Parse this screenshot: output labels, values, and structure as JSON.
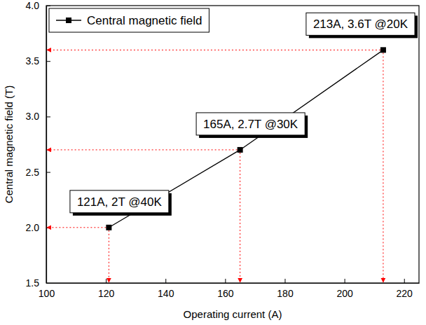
{
  "chart_data": {
    "type": "line",
    "x_label": "Operating current (A)",
    "y_label": "Central magnetic field (T)",
    "xlim": [
      100,
      225
    ],
    "xticks": [
      100,
      120,
      140,
      160,
      180,
      200,
      220
    ],
    "ylim": [
      1.5,
      4.0
    ],
    "yticks": [
      1.5,
      {
        "value": 2,
        "label": "2.0"
      },
      2.5,
      {
        "value": 3,
        "label": "3.0"
      },
      3.5,
      {
        "value": 4,
        "label": "4.0"
      }
    ],
    "legend": "top-left",
    "series": [
      {
        "name": "Central magnetic field",
        "color": "#000000",
        "marker": "square",
        "line_style": "solid",
        "x": [
          121,
          165,
          213
        ],
        "values": [
          2,
          2.7,
          3.6
        ]
      }
    ],
    "annotations": [
      "121A, 2T @40K",
      "165A, 2.7T @30K",
      "213A, 3.6T @20K"
    ]
  }
}
